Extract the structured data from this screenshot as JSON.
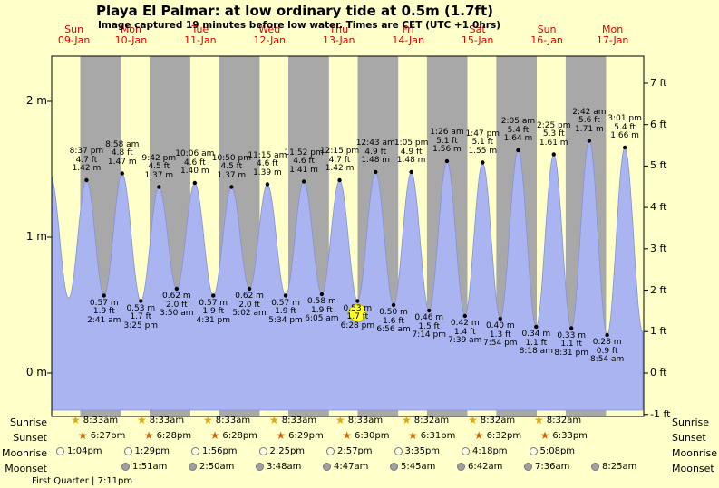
{
  "title": "Playa El Palmar: at low  ordinary tide at 0.5m (1.7ft)",
  "subtitle": "Image captured 19 minutes before low water. Times are CET (UTC +1.0hrs)",
  "days": [
    {
      "name": "Sun",
      "date": "09-Jan"
    },
    {
      "name": "Mon",
      "date": "10-Jan"
    },
    {
      "name": "Tue",
      "date": "11-Jan"
    },
    {
      "name": "Wed",
      "date": "12-Jan"
    },
    {
      "name": "Thu",
      "date": "13-Jan"
    },
    {
      "name": "Fri",
      "date": "14-Jan"
    },
    {
      "name": "Sat",
      "date": "15-Jan"
    },
    {
      "name": "Sun",
      "date": "16-Jan"
    },
    {
      "name": "Mon",
      "date": "17-Jan"
    }
  ],
  "axes": {
    "left_ticks": [
      {
        "label": "2 m",
        "value_m": 2
      },
      {
        "label": "1 m",
        "value_m": 1
      },
      {
        "label": "0 m",
        "value_m": 0
      }
    ],
    "right_ticks": [
      {
        "label": "7 ft",
        "value_ft": 7
      },
      {
        "label": "6 ft",
        "value_ft": 6
      },
      {
        "label": "5 ft",
        "value_ft": 5
      },
      {
        "label": "4 ft",
        "value_ft": 4
      },
      {
        "label": "3 ft",
        "value_ft": 3
      },
      {
        "label": "2 ft",
        "value_ft": 2
      },
      {
        "label": "1 ft",
        "value_ft": 1
      },
      {
        "label": "0 ft",
        "value_ft": 0
      },
      {
        "label": "-1 ft",
        "value_ft": -1
      }
    ]
  },
  "chart_data": {
    "type": "area",
    "series_name": "tide height",
    "ylabel_left": "m",
    "ylabel_right": "ft",
    "ylim_m": [
      -0.27,
      2.33
    ],
    "extremes": [
      {
        "type": "high",
        "time": "8:37 pm",
        "ft": "4.7 ft",
        "m": "1.42 m",
        "height_m": 1.42
      },
      {
        "type": "low",
        "time": "2:41 am",
        "ft": "1.9 ft",
        "m": "0.57 m",
        "height_m": 0.57
      },
      {
        "type": "high",
        "time": "8:58 am",
        "ft": "4.8 ft",
        "m": "1.47 m",
        "height_m": 1.47
      },
      {
        "type": "low",
        "time": "3:25 pm",
        "ft": "1.7 ft",
        "m": "0.53 m",
        "height_m": 0.53
      },
      {
        "type": "high",
        "time": "9:42 pm",
        "ft": "4.5 ft",
        "m": "1.37 m",
        "height_m": 1.37
      },
      {
        "type": "low",
        "time": "3:50 am",
        "ft": "2.0 ft",
        "m": "0.62 m",
        "height_m": 0.62
      },
      {
        "type": "high",
        "time": "10:06 am",
        "ft": "4.6 ft",
        "m": "1.40 m",
        "height_m": 1.4
      },
      {
        "type": "low",
        "time": "4:31 pm",
        "ft": "1.9 ft",
        "m": "0.57 m",
        "height_m": 0.57
      },
      {
        "type": "high",
        "time": "10:50 pm",
        "ft": "4.5 ft",
        "m": "1.37 m",
        "height_m": 1.37
      },
      {
        "type": "low",
        "time": "5:02 am",
        "ft": "2.0 ft",
        "m": "0.62 m",
        "height_m": 0.62
      },
      {
        "type": "high",
        "time": "11:15 am",
        "ft": "4.6 ft",
        "m": "1.39 m",
        "height_m": 1.39
      },
      {
        "type": "low",
        "time": "5:34 pm",
        "ft": "1.9 ft",
        "m": "0.57 m",
        "height_m": 0.57
      },
      {
        "type": "high",
        "time": "11:52 pm",
        "ft": "4.6 ft",
        "m": "1.41 m",
        "height_m": 1.41
      },
      {
        "type": "low",
        "time": "6:05 am",
        "ft": "1.9 ft",
        "m": "0.58 m",
        "height_m": 0.58
      },
      {
        "type": "high",
        "time": "12:15 pm",
        "ft": "4.7 ft",
        "m": "1.42 m",
        "height_m": 1.42
      },
      {
        "type": "low",
        "time": "6:28 pm",
        "ft": "1.7 ft",
        "m": "0.53 m",
        "height_m": 0.53,
        "current": true
      },
      {
        "type": "high",
        "time": "12:43 am",
        "ft": "4.9 ft",
        "m": "1.48 m",
        "height_m": 1.48
      },
      {
        "type": "low",
        "time": "6:56 am",
        "ft": "1.6 ft",
        "m": "0.50 m",
        "height_m": 0.5
      },
      {
        "type": "high",
        "time": "1:05 pm",
        "ft": "4.9 ft",
        "m": "1.48 m",
        "height_m": 1.48
      },
      {
        "type": "low",
        "time": "7:14 pm",
        "ft": "1.5 ft",
        "m": "0.46 m",
        "height_m": 0.46
      },
      {
        "type": "high",
        "time": "1:26 am",
        "ft": "5.1 ft",
        "m": "1.56 m",
        "height_m": 1.56
      },
      {
        "type": "low",
        "time": "7:39 am",
        "ft": "1.4 ft",
        "m": "0.42 m",
        "height_m": 0.42
      },
      {
        "type": "high",
        "time": "1:47 pm",
        "ft": "5.1 ft",
        "m": "1.55 m",
        "height_m": 1.55
      },
      {
        "type": "low",
        "time": "7:54 pm",
        "ft": "1.3 ft",
        "m": "0.40 m",
        "height_m": 0.4
      },
      {
        "type": "high",
        "time": "2:05 am",
        "ft": "5.4 ft",
        "m": "1.64 m",
        "height_m": 1.64
      },
      {
        "type": "low",
        "time": "8:18 am",
        "ft": "1.1 ft",
        "m": "0.34 m",
        "height_m": 0.34
      },
      {
        "type": "high",
        "time": "2:25 pm",
        "ft": "5.3 ft",
        "m": "1.61 m",
        "height_m": 1.61
      },
      {
        "type": "low",
        "time": "8:31 pm",
        "ft": "1.1 ft",
        "m": "0.33 m",
        "height_m": 0.33
      },
      {
        "type": "high",
        "time": "2:42 am",
        "ft": "5.6 ft",
        "m": "1.71 m",
        "height_m": 1.71
      },
      {
        "type": "low",
        "time": "8:54 am",
        "ft": "0.9 ft",
        "m": "0.28 m",
        "height_m": 0.28
      },
      {
        "type": "high",
        "time": "3:01 pm",
        "ft": "5.4 ft",
        "m": "1.66 m",
        "height_m": 1.66
      }
    ],
    "current_marker": {
      "time": "6:28 pm",
      "height_label": "0.53 m"
    }
  },
  "astro": {
    "rows": [
      {
        "label": "Sunrise",
        "icon": "sunrise-star-icon",
        "times": [
          "8:33am",
          "8:33am",
          "8:33am",
          "8:33am",
          "8:33am",
          "8:32am",
          "8:32am",
          "8:32am"
        ]
      },
      {
        "label": "Sunset",
        "icon": "sunset-star-icon",
        "times": [
          "6:27pm",
          "6:28pm",
          "6:28pm",
          "6:29pm",
          "6:30pm",
          "6:31pm",
          "6:32pm",
          "6:33pm"
        ]
      },
      {
        "label": "Moonrise",
        "icon": "moonrise-circle-icon",
        "times": [
          "1:04pm",
          "1:29pm",
          "1:56pm",
          "2:25pm",
          "2:57pm",
          "3:35pm",
          "4:18pm",
          "5:08pm"
        ]
      },
      {
        "label": "Moonset",
        "icon": "moonset-circle-icon",
        "times": [
          "1:51am",
          "2:50am",
          "3:48am",
          "4:47am",
          "5:45am",
          "6:42am",
          "7:36am",
          "8:25am"
        ]
      }
    ],
    "moon_phase": "First Quarter | 7:11pm"
  },
  "colors": {
    "day_bg": "#ffffc9",
    "night_band": "#a8a8a8",
    "tide_fill": "#a9b4f0",
    "tide_edge": "#8492d8",
    "header_red": "#dd0000",
    "marker_yellow": "#ffff33",
    "marker_edge": "#b8b800",
    "sunrise_star": "#e0a810",
    "sunset_star": "#cc6a14",
    "moonrise_fill": "#ffffe6",
    "moonset_fill": "#a0a0a0"
  }
}
